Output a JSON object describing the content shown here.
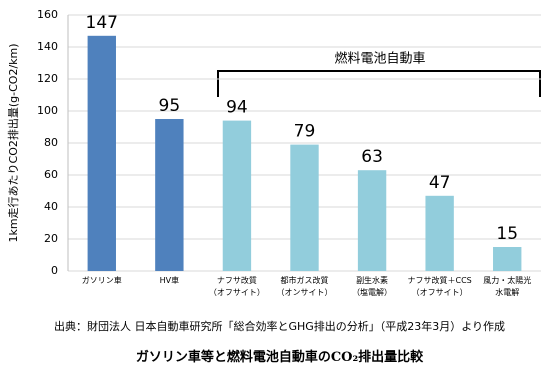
{
  "chart_data": {
    "type": "bar",
    "title": "ガソリン車等と燃料電池自動車のCO₂排出量比較",
    "source": "出典：財団法人 日本自動車研究所「総合効率とGHG排出の分析」（平成23年3月）より作成",
    "y_label": "1km走行あたりCO2排出量(g-CO2/km)",
    "annotation": "燃料電池自動車",
    "categories": [
      "ガソリン車",
      "HV車",
      "ナフサ改質\n（オフサイト）",
      "都市ガス改質\n（オンサイト）",
      "副生水素\n（塩電解）",
      "ナフサ改質＋CCS\n（オフサイト）",
      "風力・太陽光\n水電解"
    ],
    "values": [
      147,
      95,
      94,
      79,
      63,
      47,
      15
    ],
    "colors": [
      "#4f81bd",
      "#4f81bd",
      "#92cddc",
      "#92cddc",
      "#92cddc",
      "#92cddc",
      "#92cddc"
    ],
    "ylim": [
      0,
      160
    ],
    "yticks": [
      0,
      20,
      40,
      60,
      80,
      100,
      120,
      140,
      160
    ],
    "grid": true
  }
}
